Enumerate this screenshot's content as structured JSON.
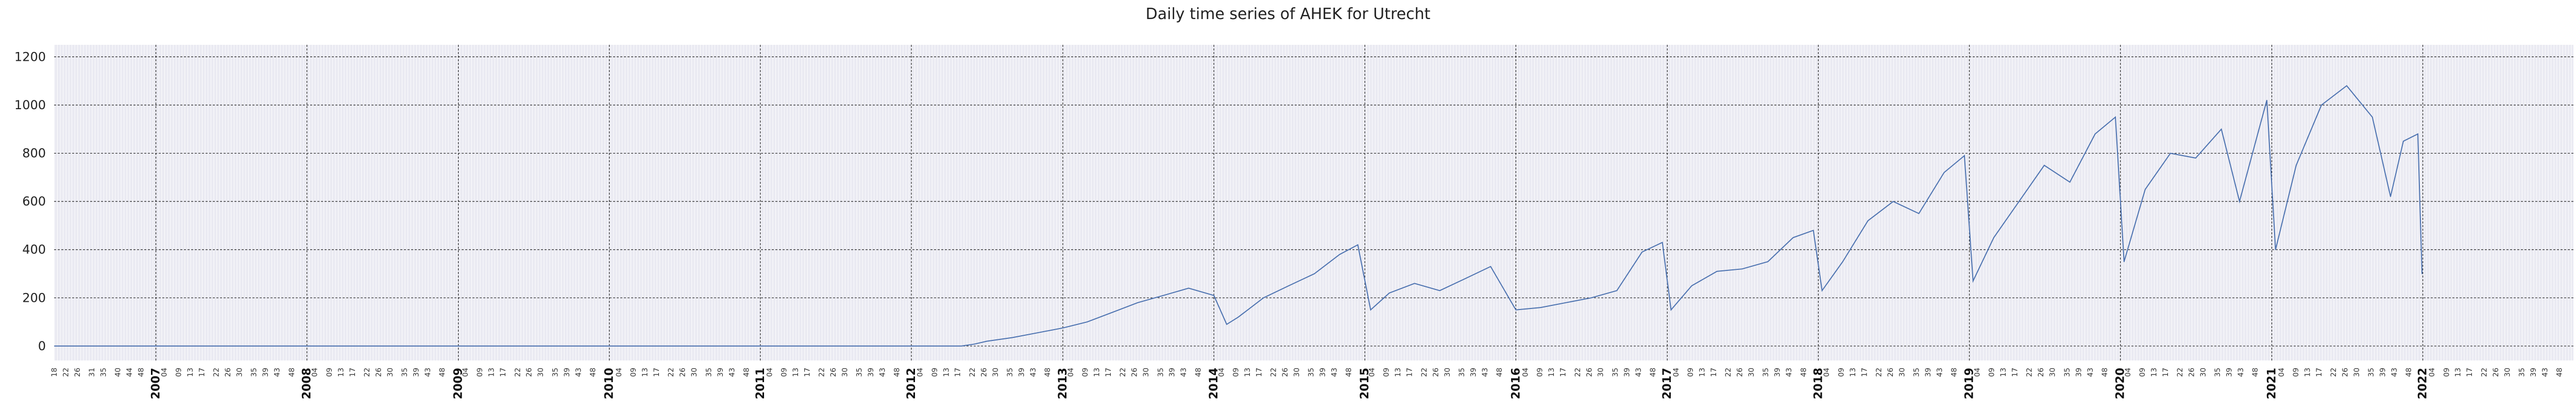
{
  "chart_data": {
    "type": "line",
    "title": "Daily time series of AHEK for Utrecht",
    "xlabel": "",
    "ylabel": "",
    "ylim": [
      -60,
      1250
    ],
    "yticks": [
      0,
      200,
      400,
      600,
      800,
      1000,
      1200
    ],
    "xlim": [
      "2006-04-30",
      "2022-12-31"
    ],
    "x_year_ticks": [
      "2007",
      "2008",
      "2009",
      "2010",
      "2011",
      "2012",
      "2013",
      "2014",
      "2015",
      "2016",
      "2017",
      "2018",
      "2019",
      "2020",
      "2021",
      "2022"
    ],
    "x_week_ticks_per_year": [
      "04",
      "09",
      "13",
      "17",
      "22",
      "26",
      "30",
      "35",
      "39",
      "43",
      "48"
    ],
    "x_week_ticks_first_year": [
      "18",
      "22",
      "26",
      "31",
      "35",
      "40",
      "44",
      "48"
    ],
    "grid": true,
    "series_color": "#4c72b0",
    "series": [
      {
        "points": [
          [
            "2006-05-01",
            0
          ],
          [
            "2012-05-01",
            0
          ],
          [
            "2012-06-01",
            8
          ],
          [
            "2012-07-01",
            20
          ],
          [
            "2012-09-01",
            35
          ],
          [
            "2012-11-01",
            55
          ],
          [
            "2013-01-01",
            75
          ],
          [
            "2013-03-01",
            100
          ],
          [
            "2013-05-01",
            140
          ],
          [
            "2013-07-01",
            180
          ],
          [
            "2013-09-01",
            210
          ],
          [
            "2013-11-01",
            240
          ],
          [
            "2014-01-01",
            210
          ],
          [
            "2014-02-01",
            90
          ],
          [
            "2014-03-01",
            120
          ],
          [
            "2014-05-01",
            200
          ],
          [
            "2014-07-01",
            250
          ],
          [
            "2014-09-01",
            300
          ],
          [
            "2014-11-01",
            380
          ],
          [
            "2014-12-15",
            420
          ],
          [
            "2015-01-15",
            150
          ],
          [
            "2015-03-01",
            220
          ],
          [
            "2015-05-01",
            260
          ],
          [
            "2015-07-01",
            230
          ],
          [
            "2015-09-01",
            280
          ],
          [
            "2015-11-01",
            330
          ],
          [
            "2016-01-01",
            150
          ],
          [
            "2016-03-01",
            160
          ],
          [
            "2016-05-01",
            180
          ],
          [
            "2016-07-01",
            200
          ],
          [
            "2016-09-01",
            230
          ],
          [
            "2016-11-01",
            390
          ],
          [
            "2016-12-20",
            430
          ],
          [
            "2017-01-10",
            150
          ],
          [
            "2017-03-01",
            250
          ],
          [
            "2017-05-01",
            310
          ],
          [
            "2017-07-01",
            320
          ],
          [
            "2017-09-01",
            350
          ],
          [
            "2017-11-01",
            450
          ],
          [
            "2017-12-20",
            480
          ],
          [
            "2018-01-10",
            230
          ],
          [
            "2018-03-01",
            350
          ],
          [
            "2018-05-01",
            520
          ],
          [
            "2018-07-01",
            600
          ],
          [
            "2018-09-01",
            550
          ],
          [
            "2018-11-01",
            720
          ],
          [
            "2018-12-20",
            790
          ],
          [
            "2019-01-10",
            270
          ],
          [
            "2019-03-01",
            450
          ],
          [
            "2019-05-01",
            600
          ],
          [
            "2019-07-01",
            750
          ],
          [
            "2019-09-01",
            680
          ],
          [
            "2019-11-01",
            880
          ],
          [
            "2019-12-20",
            950
          ],
          [
            "2020-01-10",
            350
          ],
          [
            "2020-03-01",
            650
          ],
          [
            "2020-05-01",
            800
          ],
          [
            "2020-07-01",
            780
          ],
          [
            "2020-09-01",
            900
          ],
          [
            "2020-10-15",
            600
          ],
          [
            "2020-12-01",
            900
          ],
          [
            "2020-12-20",
            1020
          ],
          [
            "2021-01-10",
            400
          ],
          [
            "2021-03-01",
            750
          ],
          [
            "2021-05-01",
            1000
          ],
          [
            "2021-07-01",
            1080
          ],
          [
            "2021-09-01",
            950
          ],
          [
            "2021-10-15",
            620
          ],
          [
            "2021-11-15",
            850
          ],
          [
            "2021-12-20",
            880
          ],
          [
            "2021-12-30",
            300
          ]
        ]
      }
    ]
  }
}
